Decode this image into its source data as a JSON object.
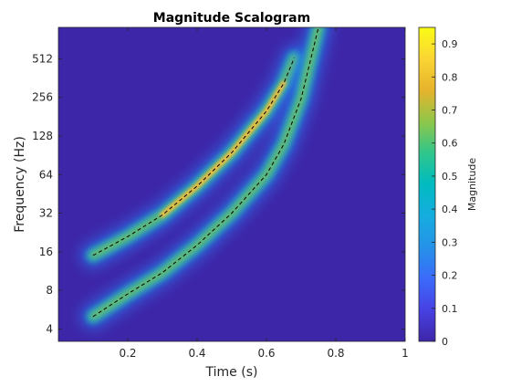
{
  "chart_data": {
    "type": "heatmap",
    "title": "Magnitude Scalogram",
    "xlabel": "Time (s)",
    "ylabel": "Frequency (Hz)",
    "xlim": [
      0,
      1
    ],
    "ylim": [
      3.2,
      900
    ],
    "yscale": "log2",
    "xticks": [
      0.2,
      0.4,
      0.6,
      0.8,
      1
    ],
    "xtick_labels": [
      "0.2",
      "0.4",
      "0.6",
      "0.8",
      "1"
    ],
    "yticks": [
      4,
      8,
      16,
      32,
      64,
      128,
      256,
      512
    ],
    "ytick_labels": [
      "4",
      "8",
      "16",
      "32",
      "64",
      "128",
      "256",
      "512"
    ],
    "colorbar": {
      "label": "Magnitude",
      "range": [
        0,
        0.95
      ],
      "ticks": [
        0,
        0.1,
        0.2,
        0.3,
        0.4,
        0.5,
        0.6,
        0.7,
        0.8,
        0.9
      ],
      "tick_labels": [
        "0",
        "0.1",
        "0.2",
        "0.3",
        "0.4",
        "0.5",
        "0.6",
        "0.7",
        "0.8",
        "0.9"
      ],
      "colormap": "parula"
    },
    "background_color": "#3e26a8",
    "series": [
      {
        "component": "upper chirp",
        "peak_magnitude": 0.95,
        "x": [
          0.1,
          0.2,
          0.3,
          0.4,
          0.5,
          0.6,
          0.65,
          0.68
        ],
        "y": [
          15,
          21,
          31,
          52,
          95,
          200,
          330,
          520
        ]
      },
      {
        "component": "lower chirp",
        "peak_magnitude": 0.6,
        "x": [
          0.1,
          0.2,
          0.3,
          0.4,
          0.5,
          0.6,
          0.65,
          0.7,
          0.75
        ],
        "y": [
          5,
          7.5,
          11,
          18,
          32,
          64,
          110,
          250,
          900
        ]
      }
    ]
  }
}
